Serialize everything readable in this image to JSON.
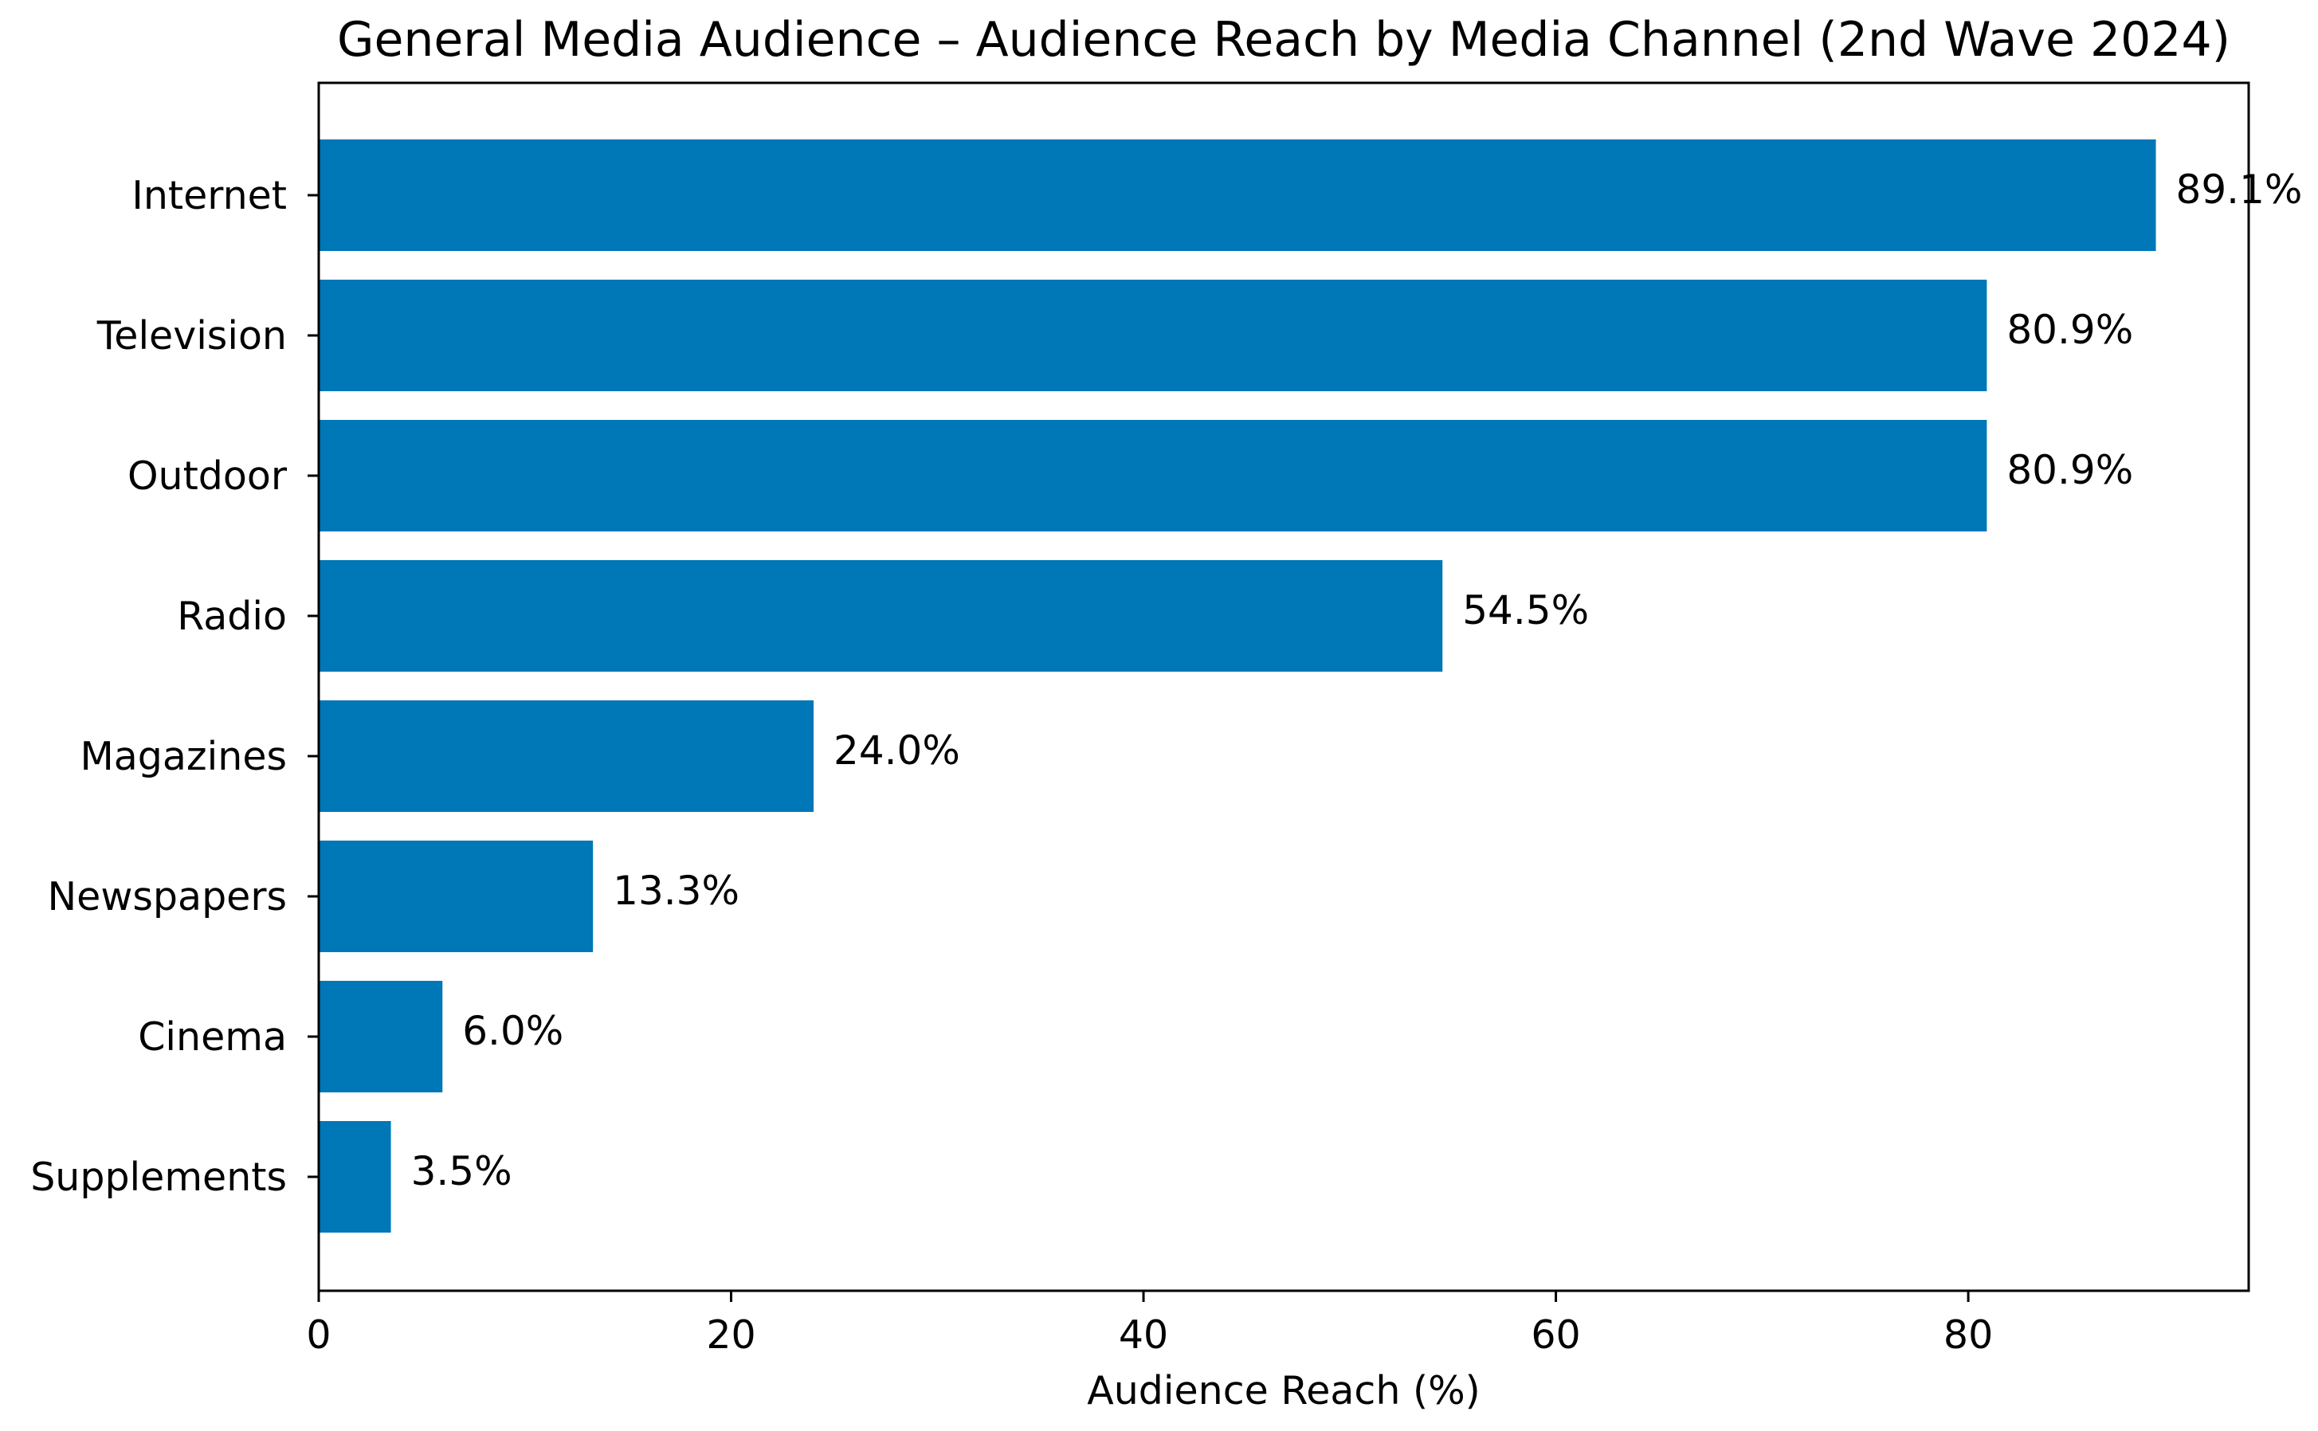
{
  "chart_data": {
    "type": "bar",
    "orientation": "horizontal",
    "title": "General Media Audience – Audience Reach by Media Channel (2nd Wave 2024)",
    "xlabel": "Audience Reach (%)",
    "ylabel": "",
    "categories": [
      "Internet",
      "Television",
      "Outdoor",
      "Radio",
      "Magazines",
      "Newspapers",
      "Cinema",
      "Supplements"
    ],
    "values": [
      89.1,
      80.9,
      80.9,
      54.5,
      24.0,
      13.3,
      6.0,
      3.5
    ],
    "data_labels": [
      "89.1%",
      "80.9%",
      "80.9%",
      "54.5%",
      "24.0%",
      "13.3%",
      "6.0%",
      "3.5%"
    ],
    "xlim": [
      0,
      93.6
    ],
    "xticks": [
      0,
      20,
      40,
      60,
      80
    ],
    "xtick_labels": [
      "0",
      "20",
      "40",
      "60",
      "80"
    ],
    "grid": false,
    "legend": "none",
    "bar_color": "#0077b6"
  }
}
